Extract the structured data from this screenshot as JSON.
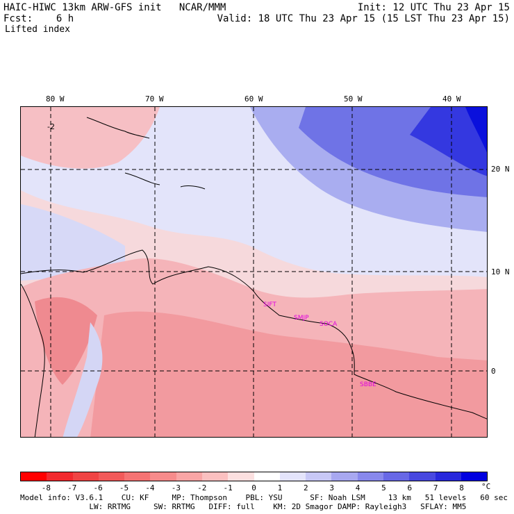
{
  "header": {
    "title": "HAIC-HIWC 13km ARW-GFS init   NCAR/MMM",
    "fcst_label": "Fcst:",
    "fcst_value": "6 h",
    "init": "Init: 12 UTC Thu 23 Apr 15",
    "valid": "Valid: 18 UTC Thu 23 Apr 15 (15 LST Thu 23 Apr 15)",
    "field": "Lifted index"
  },
  "map": {
    "lon_labels": [
      "80 W",
      "70 W",
      "60 W",
      "50 W",
      "40 W"
    ],
    "lat_labels": [
      "20 N",
      "10 N",
      "0"
    ],
    "contour_label": "-2",
    "stations": [
      "SIFT",
      "SMJP",
      "SOCA",
      "SBBE"
    ]
  },
  "colorbar": {
    "labels": [
      "-8",
      "-7",
      "-6",
      "-5",
      "-4",
      "-3",
      "-2",
      "-1",
      "0",
      "1",
      "2",
      "3",
      "4",
      "5",
      "6",
      "7",
      "8"
    ],
    "unit": "°C",
    "colors": [
      "#ff0000",
      "#f2292e",
      "#f04444",
      "#f25a5a",
      "#f57373",
      "#f78b8b",
      "#f9a5a5",
      "#fbc0c0",
      "#fce0e0",
      "#ffffff",
      "#e4e4fb",
      "#c8c8f6",
      "#a8a8f0",
      "#8888ec",
      "#6868e6",
      "#4848e0",
      "#2828dc",
      "#0000e0"
    ]
  },
  "footer": {
    "line1": "Model info: V3.6.1    CU: KF     MP: Thompson    PBL: YSU      SF: Noah LSM     13 km   51 levels   60 sec",
    "line2": "               LW: RRTMG     SW: RRTMG   DIFF: full    KM: 2D Smagor DAMP: Rayleigh3   SFLAY: MM5"
  }
}
